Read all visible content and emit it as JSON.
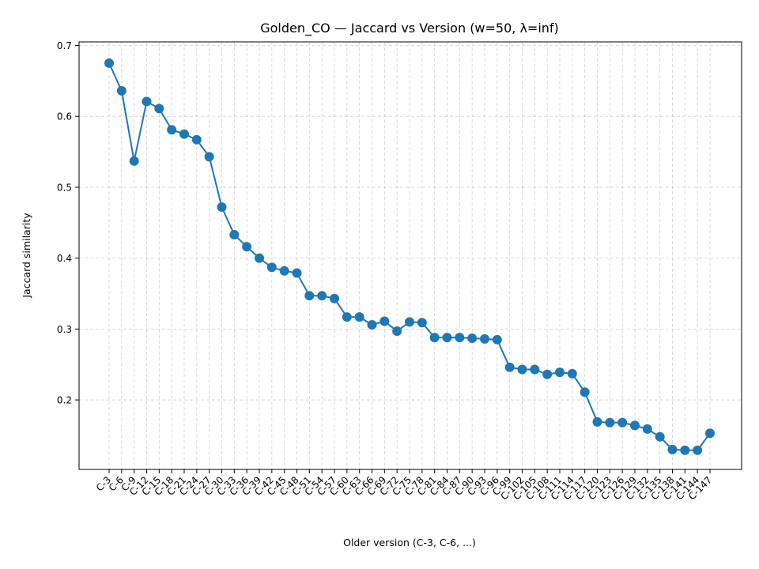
{
  "chart_data": {
    "type": "line",
    "title": "Golden_CO — Jaccard vs Version (w=50, λ=inf)",
    "xlabel": "Older version (C-3, C-6, ...)",
    "ylabel": "Jaccard similarity",
    "ylim": [
      0.102,
      0.705
    ],
    "yticks": [
      0.2,
      0.3,
      0.4,
      0.5,
      0.6,
      0.7
    ],
    "ytick_labels": [
      "0.2",
      "0.3",
      "0.4",
      "0.5",
      "0.6",
      "0.7"
    ],
    "grid": true,
    "categories": [
      "C-3",
      "C-6",
      "C-9",
      "C-12",
      "C-15",
      "C-18",
      "C-21",
      "C-24",
      "C-27",
      "C-30",
      "C-33",
      "C-36",
      "C-39",
      "C-42",
      "C-45",
      "C-48",
      "C-51",
      "C-54",
      "C-57",
      "C-60",
      "C-63",
      "C-66",
      "C-69",
      "C-72",
      "C-75",
      "C-78",
      "C-81",
      "C-84",
      "C-87",
      "C-90",
      "C-93",
      "C-96",
      "C-99",
      "C-102",
      "C-105",
      "C-108",
      "C-111",
      "C-114",
      "C-117",
      "C-120",
      "C-123",
      "C-126",
      "C-129",
      "C-132",
      "C-135",
      "C-138",
      "C-141",
      "C-144",
      "C-147"
    ],
    "series": [
      {
        "color": "#1f77b4",
        "values": [
          0.675,
          0.636,
          0.537,
          0.621,
          0.611,
          0.581,
          0.575,
          0.567,
          0.543,
          0.472,
          0.433,
          0.416,
          0.4,
          0.387,
          0.382,
          0.379,
          0.347,
          0.347,
          0.343,
          0.317,
          0.317,
          0.306,
          0.311,
          0.297,
          0.31,
          0.309,
          0.288,
          0.288,
          0.288,
          0.287,
          0.286,
          0.285,
          0.246,
          0.243,
          0.243,
          0.236,
          0.239,
          0.237,
          0.211,
          0.169,
          0.168,
          0.168,
          0.164,
          0.159,
          0.148,
          0.13,
          0.129,
          0.129,
          0.153
        ]
      }
    ]
  }
}
